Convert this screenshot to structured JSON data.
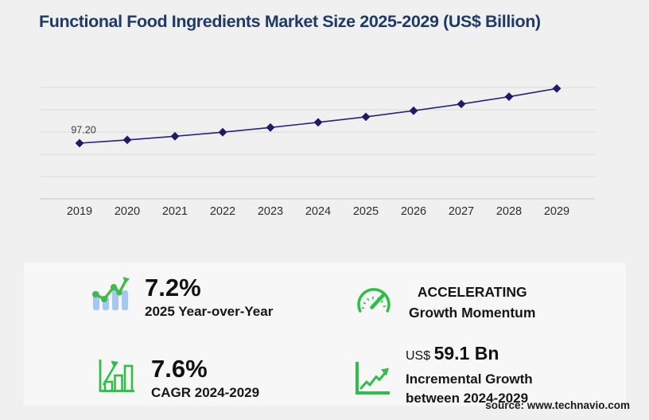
{
  "page": {
    "title": "Functional Food Ingredients Market Size 2025-2029 (US$ Billion)",
    "source": "source: www.technavio.com"
  },
  "chart_data": {
    "type": "line",
    "title": "Functional Food Ingredients Market Size 2025-2029 (US$ Billion)",
    "x": [
      "2019",
      "2020",
      "2021",
      "2022",
      "2023",
      "2024",
      "2025",
      "2026",
      "2027",
      "2028",
      "2029"
    ],
    "series": [
      {
        "name": "Market size (US$ Billion)",
        "values": [
          97.2,
          102.9,
          109.3,
          116.4,
          124.6,
          133.6,
          143.2,
          153.9,
          165.6,
          178.4,
          192.7
        ]
      }
    ],
    "visible_data_labels": {
      "2019": "97.20"
    },
    "xlabel": "",
    "ylabel": "",
    "ylim_estimated": [
      0,
      195
    ],
    "y_axis_labels_shown": false,
    "grid": true,
    "legend": false,
    "marker": "diamond",
    "line_color": "#26247b",
    "marker_color": "#1e1b6b"
  },
  "stats": [
    {
      "icon": "bar-line-growth-icon",
      "value": "7.2%",
      "label": "2025 Year-over-Year"
    },
    {
      "icon": "speedometer-icon",
      "line1": "ACCELERATING",
      "line2": "Growth Momentum"
    },
    {
      "icon": "bar-chart-arrow-icon",
      "value": "7.6%",
      "label": "CAGR 2024-2029"
    },
    {
      "icon": "axis-growth-arrow-icon",
      "value_prefix": "US$",
      "value": "59.1 Bn",
      "label_line1": "Incremental Growth",
      "label_line2": "between 2024-2029"
    }
  ],
  "colors": {
    "title_navy": "#1e3a66",
    "chart_line": "#26247b",
    "grid_line": "#dadadb",
    "axis_line": "#c6c6c8",
    "icon_green": "#2fbe47",
    "icon_blue_bars": "#a5c8f3",
    "panel_bg": "#f7f7f8",
    "page_bg": "#f0f0f1"
  }
}
